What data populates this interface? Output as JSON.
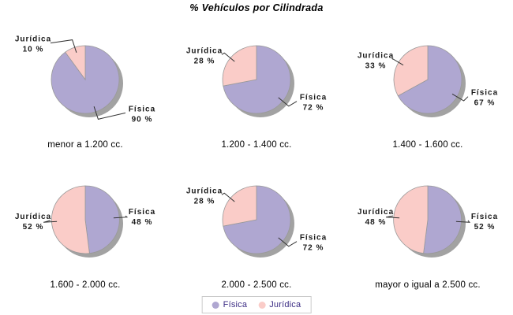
{
  "title": "% Vehículos por Cilindrada",
  "colors": {
    "fisica": "#AFA7D1",
    "juridica": "#FACCC8",
    "shadow": "#A2A2A2",
    "slice_outline": "#999999",
    "leader_line": "#333333",
    "label_text": "#1A1A1A",
    "legend_text": "#3D2E85",
    "legend_border": "#CBCBCB"
  },
  "legend": {
    "items": [
      {
        "label": "Física",
        "color_key": "fisica"
      },
      {
        "label": "Jurídica",
        "color_key": "juridica"
      }
    ]
  },
  "chart_data": [
    {
      "type": "pie",
      "category": "menor a 1.200 cc.",
      "slices": [
        {
          "label": "Física",
          "value": 90
        },
        {
          "label": "Jurídica",
          "value": 10
        }
      ]
    },
    {
      "type": "pie",
      "category": "1.200 - 1.400 cc.",
      "slices": [
        {
          "label": "Física",
          "value": 72
        },
        {
          "label": "Jurídica",
          "value": 28
        }
      ]
    },
    {
      "type": "pie",
      "category": "1.400 - 1.600 cc.",
      "slices": [
        {
          "label": "Física",
          "value": 67
        },
        {
          "label": "Jurídica",
          "value": 33
        }
      ]
    },
    {
      "type": "pie",
      "category": "1.600 - 2.000 cc.",
      "slices": [
        {
          "label": "Física",
          "value": 48
        },
        {
          "label": "Jurídica",
          "value": 52
        }
      ]
    },
    {
      "type": "pie",
      "category": "2.000 - 2.500 cc.",
      "slices": [
        {
          "label": "Física",
          "value": 72
        },
        {
          "label": "Jurídica",
          "value": 28
        }
      ]
    },
    {
      "type": "pie",
      "category": "mayor o igual a 2.500 cc.",
      "slices": [
        {
          "label": "Física",
          "value": 52
        },
        {
          "label": "Jurídica",
          "value": 48
        }
      ]
    }
  ]
}
